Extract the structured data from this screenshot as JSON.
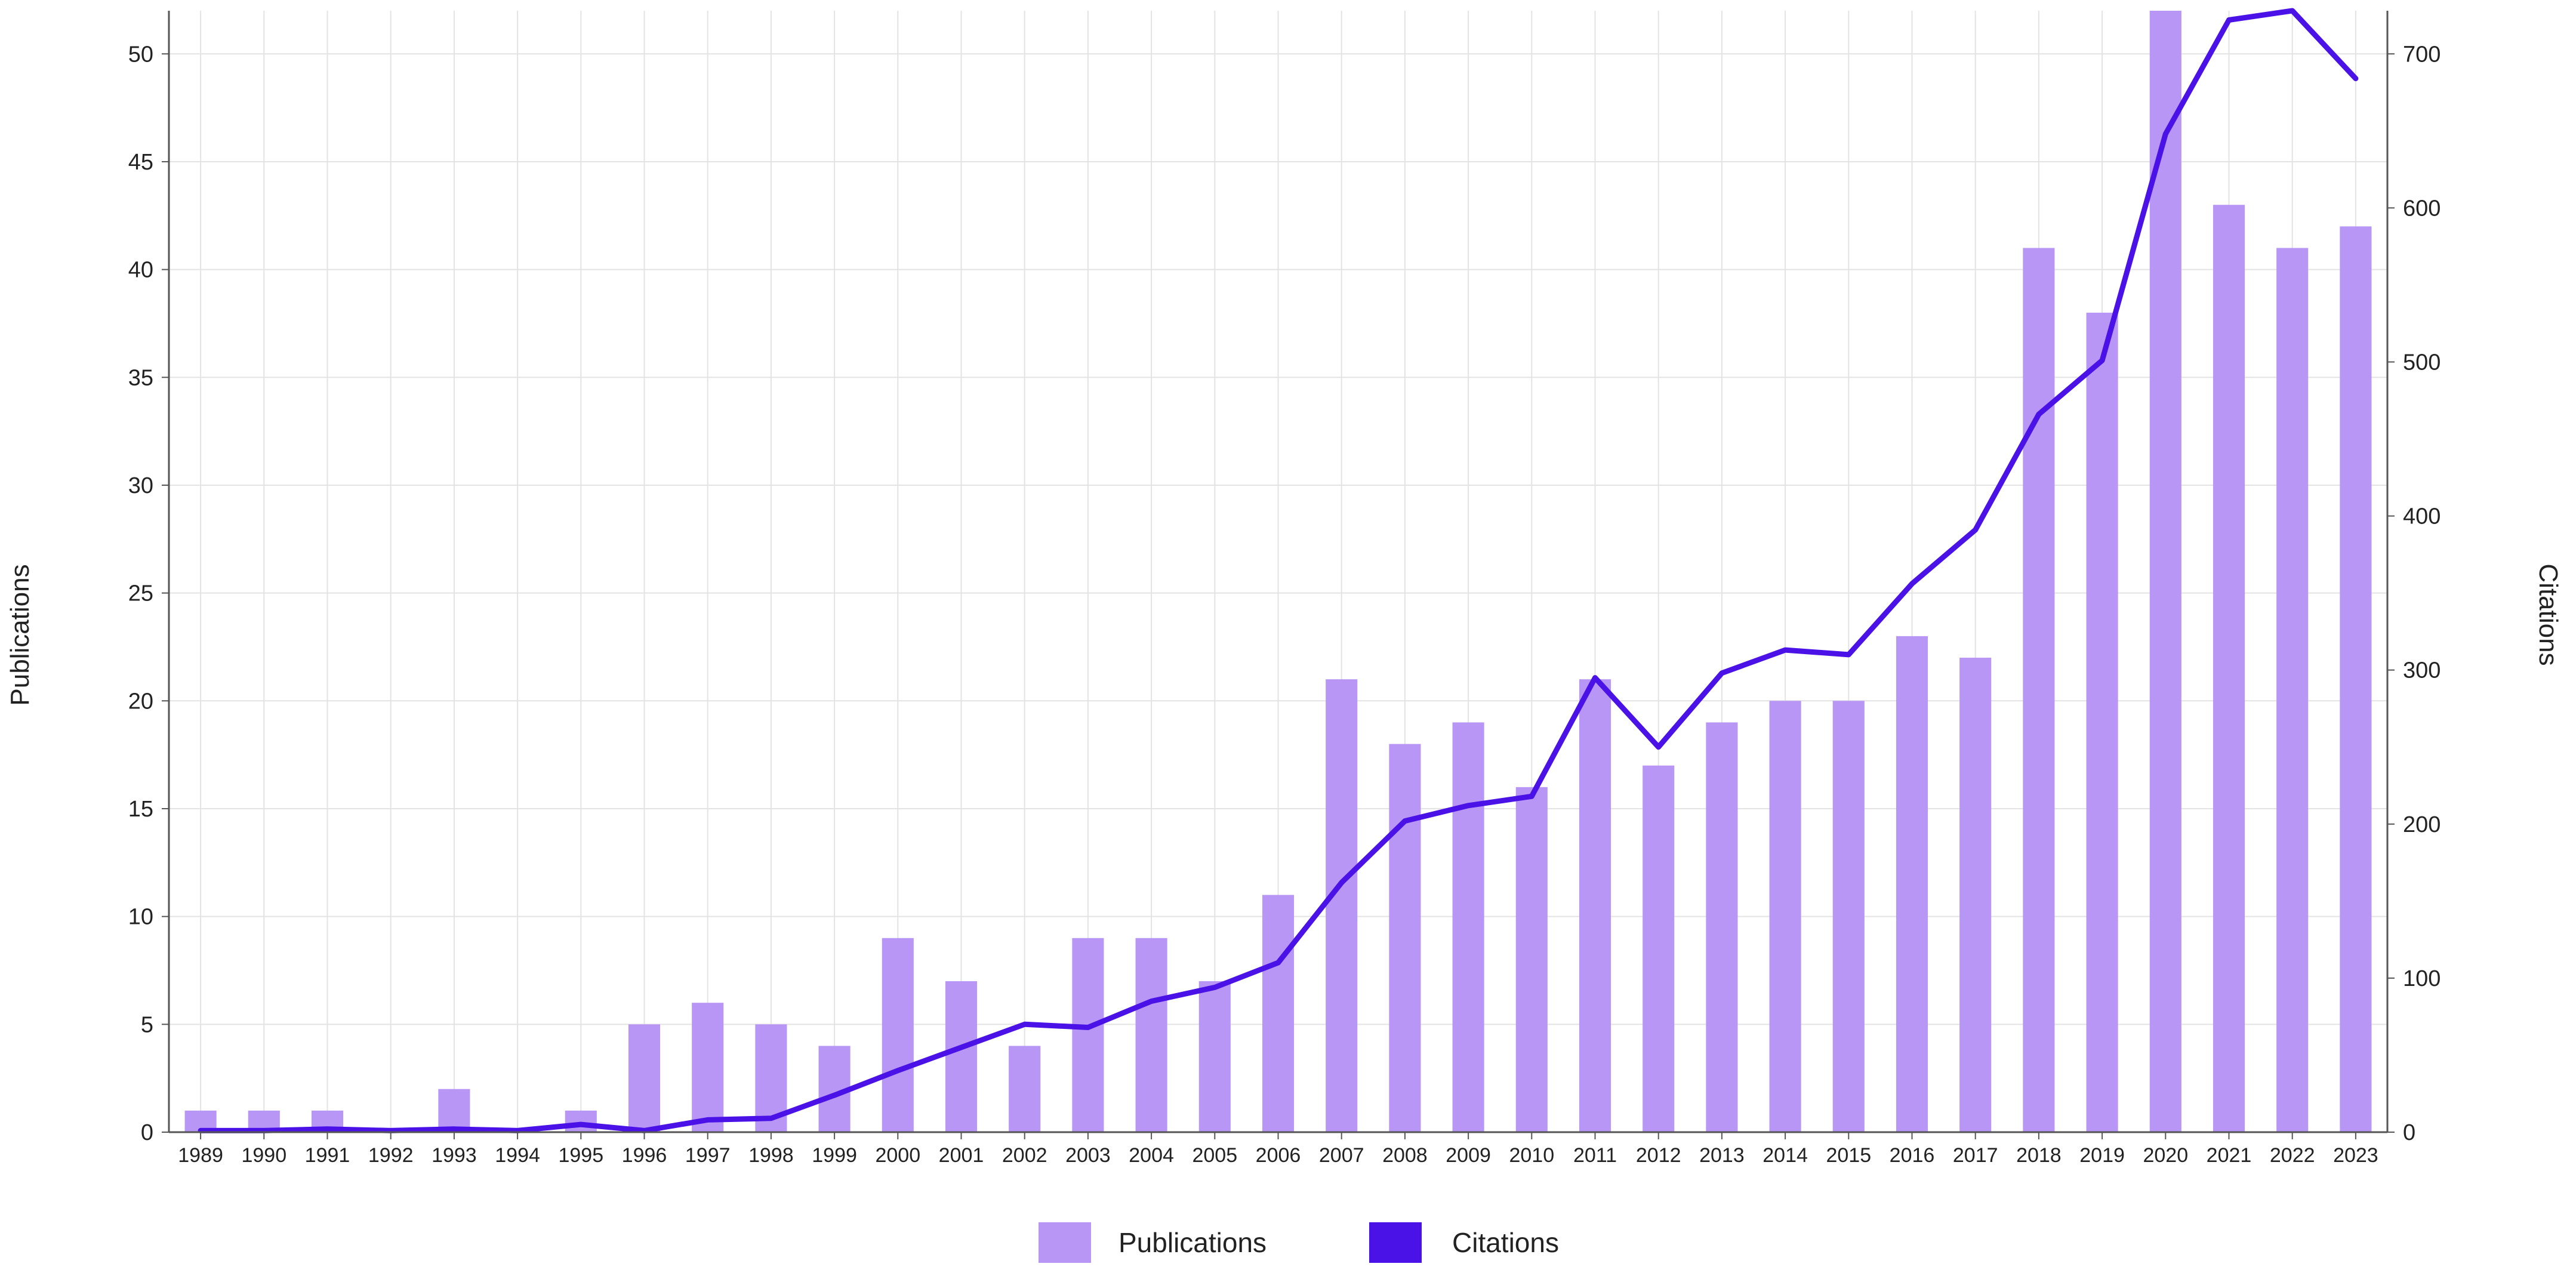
{
  "chart_data": {
    "type": "bar",
    "title": "",
    "xlabel": "",
    "categories": [
      "1989",
      "1990",
      "1991",
      "1992",
      "1993",
      "1994",
      "1995",
      "1996",
      "1997",
      "1998",
      "1999",
      "2000",
      "2001",
      "2002",
      "2003",
      "2004",
      "2005",
      "2006",
      "2007",
      "2008",
      "2009",
      "2010",
      "2011",
      "2012",
      "2013",
      "2014",
      "2015",
      "2016",
      "2017",
      "2018",
      "2019",
      "2020",
      "2021",
      "2022",
      "2023"
    ],
    "series": [
      {
        "name": "Publications",
        "kind": "bar",
        "axis": "left",
        "color": "#b796f5",
        "values": [
          1,
          1,
          1,
          0,
          2,
          0,
          1,
          5,
          6,
          5,
          4,
          9,
          7,
          4,
          9,
          9,
          7,
          11,
          21,
          18,
          19,
          16,
          21,
          17,
          19,
          20,
          20,
          23,
          22,
          41,
          38,
          52,
          43,
          41,
          42
        ]
      },
      {
        "name": "Citations",
        "kind": "line",
        "axis": "right",
        "color": "#4a12e6",
        "values": [
          1,
          1,
          2,
          1,
          2,
          1,
          5,
          1,
          8,
          9,
          24,
          40,
          55,
          70,
          68,
          85,
          94,
          110,
          162,
          202,
          212,
          218,
          295,
          250,
          298,
          313,
          310,
          356,
          391,
          466,
          501,
          648,
          722,
          728,
          684
        ]
      }
    ],
    "ylabel": "Publications",
    "ylim": [
      0,
      52
    ],
    "yticks": [
      0,
      5,
      10,
      15,
      20,
      25,
      30,
      35,
      40,
      45,
      50
    ],
    "y2label": "Citations",
    "y2lim": [
      0,
      728
    ],
    "y2ticks": [
      0,
      100,
      200,
      300,
      400,
      500,
      600,
      700
    ],
    "grid": true,
    "legend": "bottom-center"
  }
}
